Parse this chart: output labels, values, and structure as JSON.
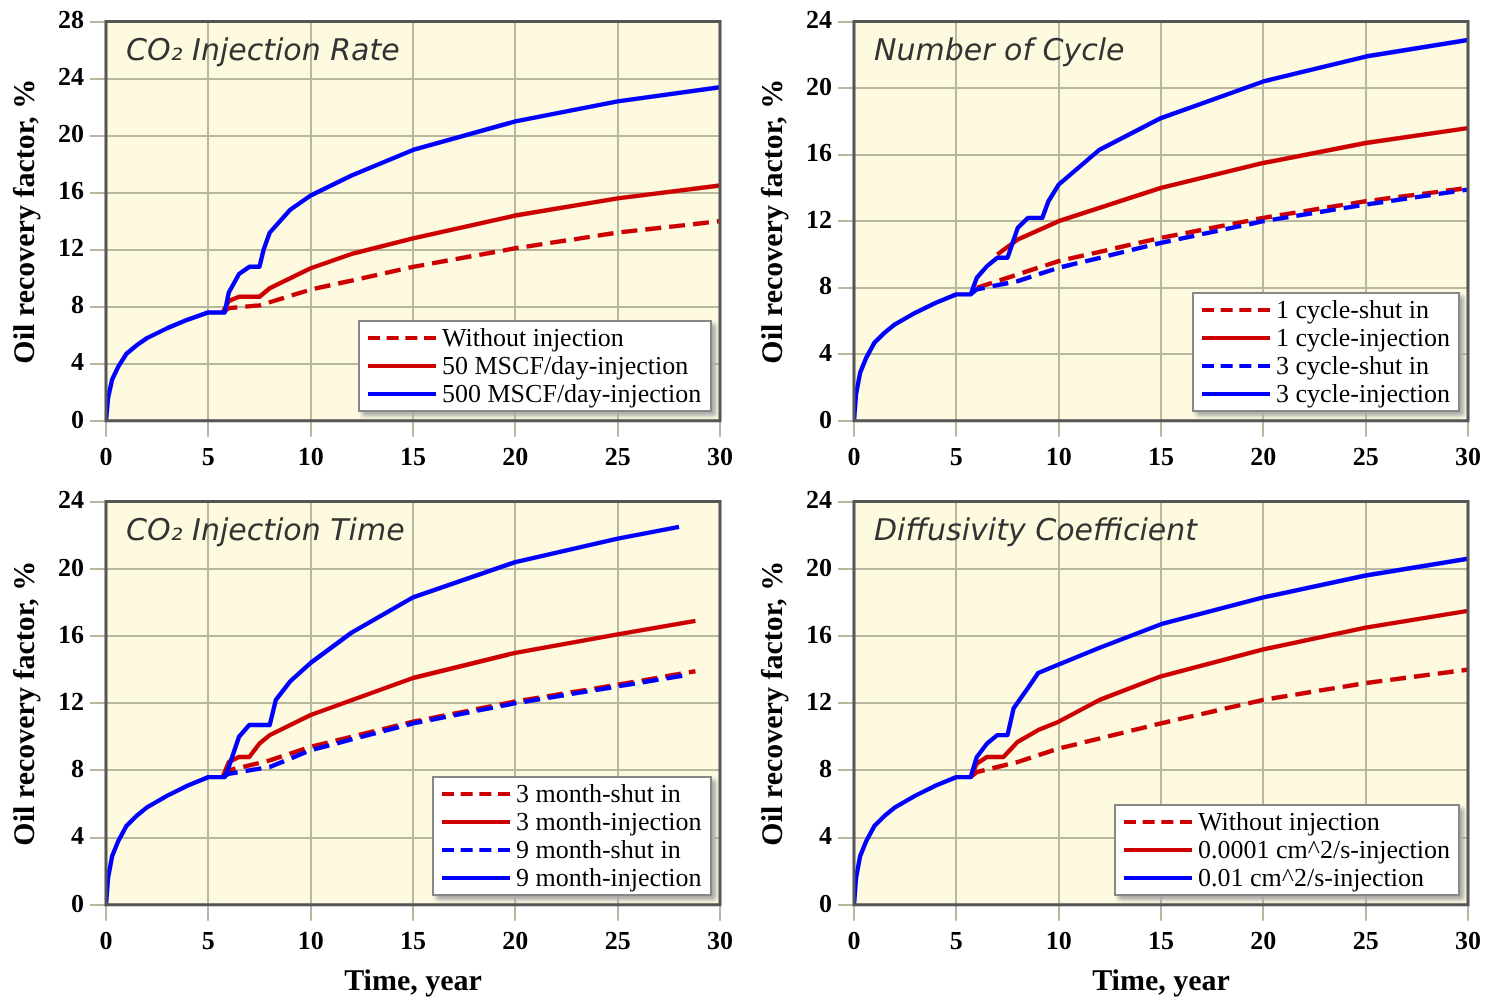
{
  "chart_data": [
    {
      "type": "line",
      "title": "CO₂ Injection Rate",
      "ylabel": "Oil recovery factor, %",
      "xlim": [
        0,
        30
      ],
      "xticks": [
        0,
        5,
        10,
        15,
        20,
        25,
        30
      ],
      "ylim": [
        0,
        28
      ],
      "yticks": [
        0,
        4,
        8,
        12,
        16,
        20,
        24,
        28
      ],
      "grid": true,
      "legend": "bottom right",
      "marker": "none",
      "series": [
        {
          "name": "Without injection",
          "color": "#cc0000",
          "line_style": "dashed",
          "x": [
            5.7,
            6,
            7.5,
            10,
            15,
            20,
            25,
            30
          ],
          "values": [
            7.6,
            7.9,
            8.1,
            9.2,
            10.8,
            12.1,
            13.2,
            14.0
          ]
        },
        {
          "name": "50 MSCF/day-injection",
          "color": "#cc0000",
          "line_style": "solid",
          "x": [
            5.7,
            6,
            6.5,
            7.5,
            8,
            10,
            12,
            15,
            20,
            25,
            30
          ],
          "values": [
            7.6,
            8.4,
            8.7,
            8.7,
            9.3,
            10.7,
            11.7,
            12.8,
            14.4,
            15.6,
            16.5
          ]
        },
        {
          "name": "500 MSCF/day-injection",
          "color": "#0000ff",
          "line_style": "solid",
          "x": [
            0,
            0.1,
            0.3,
            0.6,
            1,
            1.5,
            2,
            3,
            4,
            5,
            5.8,
            6,
            6.5,
            7,
            7.5,
            7.7,
            8,
            9,
            10,
            12,
            15,
            20,
            25,
            30
          ],
          "values": [
            0,
            1.6,
            2.9,
            3.8,
            4.7,
            5.3,
            5.8,
            6.5,
            7.1,
            7.6,
            7.6,
            9.0,
            10.3,
            10.8,
            10.8,
            12.0,
            13.2,
            14.8,
            15.8,
            17.2,
            19.0,
            21.0,
            22.4,
            23.4
          ]
        }
      ]
    },
    {
      "type": "line",
      "title": "Number of Cycle",
      "ylabel": "Oil recovery factor, %",
      "xlim": [
        0,
        30
      ],
      "xticks": [
        0,
        5,
        10,
        15,
        20,
        25,
        30
      ],
      "ylim": [
        0,
        24
      ],
      "yticks": [
        0,
        4,
        8,
        12,
        16,
        20,
        24
      ],
      "grid": true,
      "legend": "bottom right",
      "marker": "none",
      "series": [
        {
          "name": "1 cycle-shut in",
          "color": "#cc0000",
          "line_style": "dashed",
          "x": [
            6,
            8,
            10,
            15,
            20,
            25,
            30
          ],
          "values": [
            8.0,
            8.8,
            9.6,
            11.0,
            12.2,
            13.2,
            14.0
          ]
        },
        {
          "name": "1 cycle-injection",
          "color": "#cc0000",
          "line_style": "solid",
          "x": [
            7,
            8,
            10,
            15,
            20,
            25,
            30
          ],
          "values": [
            10.0,
            10.9,
            12.0,
            14.0,
            15.5,
            16.7,
            17.6
          ]
        },
        {
          "name": "3 cycle-shut in",
          "color": "#0000ff",
          "line_style": "dashed",
          "x": [
            5.7,
            6,
            8,
            10,
            15,
            20,
            25,
            30
          ],
          "values": [
            7.6,
            7.9,
            8.4,
            9.2,
            10.7,
            12.0,
            13.0,
            13.9
          ]
        },
        {
          "name": "3 cycle-injection",
          "color": "#0000ff",
          "line_style": "solid",
          "x": [
            0,
            0.1,
            0.3,
            0.6,
            1,
            1.5,
            2,
            3,
            4,
            5,
            5.7,
            6,
            6.5,
            7,
            7.5,
            8,
            8.5,
            9.2,
            9.5,
            10,
            12,
            15,
            20,
            25,
            30
          ],
          "values": [
            0,
            1.6,
            2.9,
            3.8,
            4.7,
            5.3,
            5.8,
            6.5,
            7.1,
            7.6,
            7.6,
            8.6,
            9.3,
            9.8,
            9.8,
            11.6,
            12.2,
            12.2,
            13.2,
            14.2,
            16.3,
            18.2,
            20.4,
            21.9,
            22.9
          ]
        }
      ]
    },
    {
      "type": "line",
      "title": "CO₂ Injection Time",
      "xlabel": "Time, year",
      "ylabel": "Oil recovery factor, %",
      "xlim": [
        0,
        30
      ],
      "xticks": [
        0,
        5,
        10,
        15,
        20,
        25,
        30
      ],
      "ylim": [
        0,
        24
      ],
      "yticks": [
        0,
        4,
        8,
        12,
        16,
        20,
        24
      ],
      "grid": true,
      "legend": "bottom right",
      "marker": "none",
      "series": [
        {
          "name": "3 month-shut in",
          "color": "#cc0000",
          "line_style": "dashed",
          "x": [
            5.7,
            6,
            8,
            10,
            15,
            20,
            25,
            28.8
          ],
          "values": [
            7.6,
            8.0,
            8.6,
            9.4,
            10.9,
            12.1,
            13.1,
            13.9
          ]
        },
        {
          "name": "3 month-injection",
          "color": "#cc0000",
          "line_style": "solid",
          "x": [
            5.7,
            6,
            6.5,
            7,
            7.5,
            8,
            10,
            15,
            20,
            25,
            28.8
          ],
          "values": [
            7.6,
            8.5,
            8.8,
            8.8,
            9.6,
            10.1,
            11.3,
            13.5,
            15.0,
            16.1,
            16.9
          ]
        },
        {
          "name": "9 month-shut in",
          "color": "#0000ff",
          "line_style": "dashed",
          "x": [
            5.7,
            6,
            7,
            8,
            10,
            15,
            20,
            25,
            28.5
          ],
          "values": [
            7.6,
            7.8,
            8.0,
            8.2,
            9.2,
            10.8,
            12.0,
            13.0,
            13.7
          ]
        },
        {
          "name": "9 month-injection",
          "color": "#0000ff",
          "line_style": "solid",
          "x": [
            0,
            0.1,
            0.3,
            0.6,
            1,
            1.5,
            2,
            3,
            4,
            5,
            5.8,
            6,
            6.5,
            7,
            8,
            8.3,
            9,
            10,
            12,
            15,
            20,
            25,
            28
          ],
          "values": [
            0,
            1.6,
            2.9,
            3.8,
            4.7,
            5.3,
            5.8,
            6.5,
            7.1,
            7.6,
            7.6,
            8.2,
            10.0,
            10.7,
            10.7,
            12.2,
            13.3,
            14.4,
            16.2,
            18.3,
            20.4,
            21.8,
            22.5
          ]
        }
      ]
    },
    {
      "type": "line",
      "title": "Diffusivity Coefficient",
      "xlabel": "Time, year",
      "ylabel": "Oil recovery factor, %",
      "xlim": [
        0,
        30
      ],
      "xticks": [
        0,
        5,
        10,
        15,
        20,
        25,
        30
      ],
      "ylim": [
        0,
        24
      ],
      "yticks": [
        0,
        4,
        8,
        12,
        16,
        20,
        24
      ],
      "grid": true,
      "legend": "bottom right",
      "marker": "none",
      "series": [
        {
          "name": "Without injection",
          "color": "#cc0000",
          "line_style": "dashed",
          "x": [
            5.7,
            6,
            8,
            10,
            15,
            20,
            25,
            30
          ],
          "values": [
            7.6,
            7.9,
            8.5,
            9.3,
            10.8,
            12.2,
            13.2,
            14.0
          ]
        },
        {
          "name": "0.0001 cm^2/s-injection",
          "color": "#cc0000",
          "line_style": "solid",
          "x": [
            5.7,
            6,
            6.5,
            7.3,
            8,
            9,
            10,
            12,
            15,
            20,
            25,
            30
          ],
          "values": [
            7.6,
            8.4,
            8.8,
            8.8,
            9.7,
            10.4,
            10.9,
            12.2,
            13.6,
            15.2,
            16.5,
            17.5
          ]
        },
        {
          "name": "0.01 cm^2/s-injection",
          "color": "#0000ff",
          "line_style": "solid",
          "x": [
            0,
            0.1,
            0.3,
            0.6,
            1,
            1.5,
            2,
            3,
            4,
            5,
            5.7,
            6,
            6.5,
            7,
            7.5,
            7.8,
            8.5,
            9,
            10,
            12,
            15,
            20,
            25,
            30
          ],
          "values": [
            0,
            1.6,
            2.9,
            3.8,
            4.7,
            5.3,
            5.8,
            6.5,
            7.1,
            7.6,
            7.6,
            8.8,
            9.6,
            10.1,
            10.1,
            11.7,
            12.9,
            13.8,
            14.3,
            15.3,
            16.7,
            18.3,
            19.6,
            20.6
          ]
        }
      ]
    }
  ]
}
